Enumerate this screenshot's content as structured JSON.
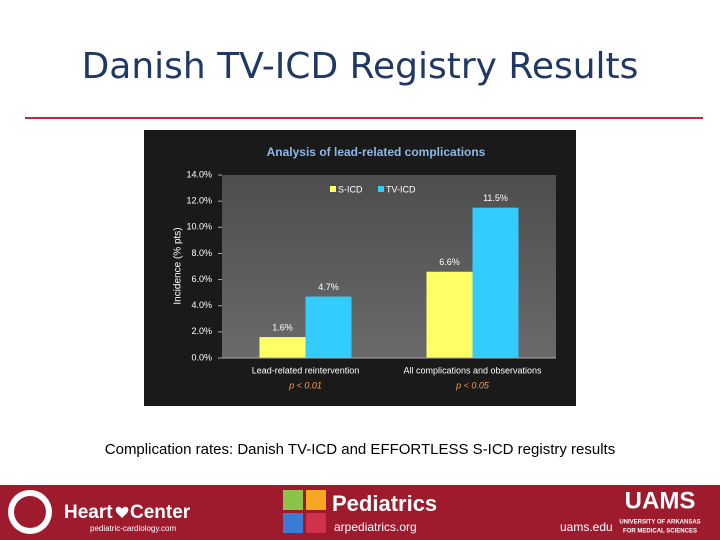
{
  "slide_title": "Danish TV-ICD Registry Results",
  "caption": "Complication rates: Danish TV-ICD and EFFORTLESS S-ICD registry results",
  "footer": {
    "heart": "Heart",
    "center": "Center",
    "heart_center_url": "pediatric-cardiology.com",
    "pediatrics": "Pediatrics",
    "pediatrics_url": "arpediatrics.org",
    "uams_url": "uams.edu",
    "uams": "UAMS",
    "uams_sub1": "UNIVERSITY OF ARKANSAS",
    "uams_sub2": "FOR MEDICAL SCIENCES"
  },
  "chart_data": {
    "type": "bar",
    "title": "Analysis of lead-related complications",
    "y_label": "Incidence (% pts)",
    "categories": [
      "Lead-related reintervention",
      "All complications and observations"
    ],
    "annotations": [
      "p < 0.01",
      "p < 0.05"
    ],
    "series": [
      {
        "name": "S-ICD",
        "color": "#ffff66",
        "values": [
          1.6,
          6.6
        ],
        "value_labels": [
          "1.6%",
          "6.6%"
        ]
      },
      {
        "name": "TV-ICD",
        "color": "#33ccff",
        "values": [
          4.7,
          11.5
        ],
        "value_labels": [
          "4.7%",
          "11.5%"
        ]
      }
    ],
    "ylim": [
      0,
      14
    ],
    "yticks": [
      {
        "value": 0,
        "label": "0.0%"
      },
      {
        "value": 2,
        "label": "2.0%"
      },
      {
        "value": 4,
        "label": "4.0%"
      },
      {
        "value": 6,
        "label": "6.0%"
      },
      {
        "value": 8,
        "label": "8.0%"
      },
      {
        "value": 10,
        "label": "10.0%"
      },
      {
        "value": 12,
        "label": "12.0%"
      },
      {
        "value": 14,
        "label": "14.0%"
      }
    ],
    "legend": "top"
  }
}
